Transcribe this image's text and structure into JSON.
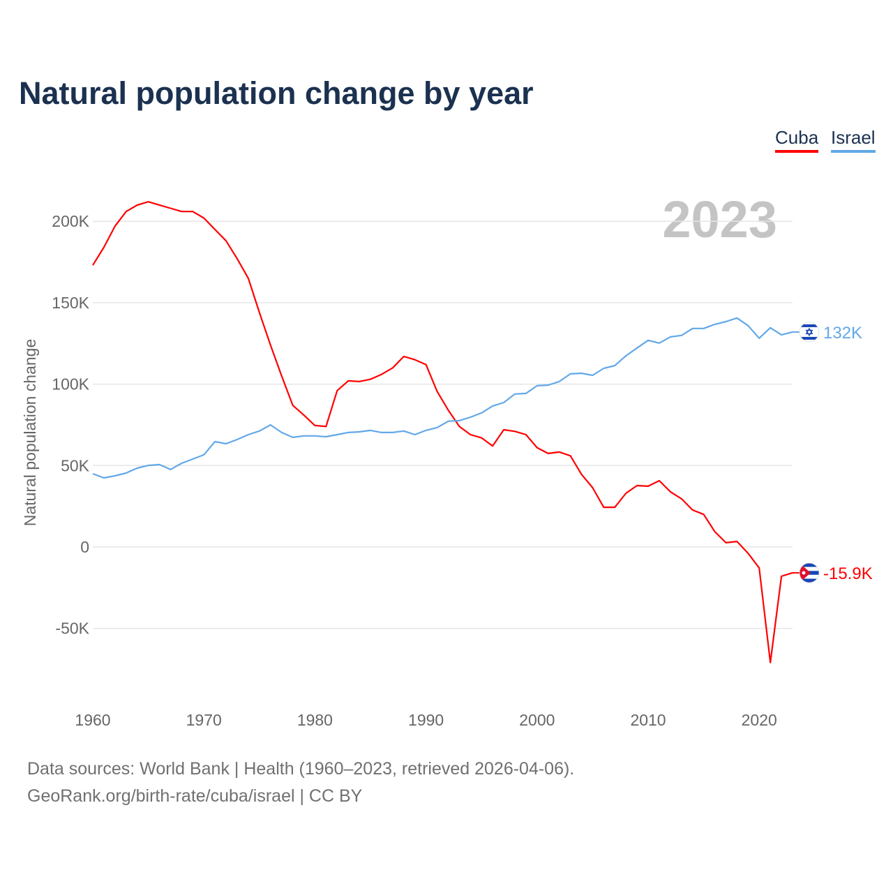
{
  "chart_data": {
    "type": "line",
    "title": "Natural population change by year",
    "ylabel": "Natural population change",
    "xlabel": "",
    "watermark_year": "2023",
    "x": [
      1960,
      1961,
      1962,
      1963,
      1964,
      1965,
      1966,
      1967,
      1968,
      1969,
      1970,
      1971,
      1972,
      1973,
      1974,
      1975,
      1976,
      1977,
      1978,
      1979,
      1980,
      1981,
      1982,
      1983,
      1984,
      1985,
      1986,
      1987,
      1988,
      1989,
      1990,
      1991,
      1992,
      1993,
      1994,
      1995,
      1996,
      1997,
      1998,
      1999,
      2000,
      2001,
      2002,
      2003,
      2004,
      2005,
      2006,
      2007,
      2008,
      2009,
      2010,
      2011,
      2012,
      2013,
      2014,
      2015,
      2016,
      2017,
      2018,
      2019,
      2020,
      2021,
      2022,
      2023
    ],
    "xlim": [
      1960,
      2023
    ],
    "ylim": [
      -90000,
      225000
    ],
    "xticks": [
      1960,
      1970,
      1980,
      1990,
      2000,
      2010,
      2020
    ],
    "xtick_labels": [
      "1960",
      "1970",
      "1980",
      "1990",
      "2000",
      "2010",
      "2020"
    ],
    "yticks": [
      -50000,
      0,
      50000,
      100000,
      150000,
      200000
    ],
    "ytick_labels": [
      "-50K",
      "0",
      "50K",
      "100K",
      "150K",
      "200K"
    ],
    "grid": true,
    "legend_position": "top-right",
    "series": [
      {
        "name": "Cuba",
        "color": "#ff0000",
        "end_label": "-15.9K",
        "flag": "cuba-flag",
        "values": [
          173000,
          184000,
          197000,
          206000,
          210000,
          212000,
          210000,
          208000,
          206000,
          206000,
          202000,
          195000,
          188000,
          177000,
          165000,
          144000,
          124000,
          105000,
          87000,
          81000,
          74600,
          74000,
          96000,
          102000,
          101600,
          103000,
          106000,
          110000,
          117000,
          115000,
          112000,
          95600,
          84000,
          74000,
          69000,
          67000,
          62000,
          72000,
          71000,
          69000,
          61000,
          57400,
          58300,
          56000,
          44600,
          36400,
          24400,
          24400,
          33000,
          37700,
          37300,
          40700,
          33900,
          29600,
          22700,
          20000,
          9400,
          2600,
          3400,
          -3900,
          -12900,
          -71000,
          -18000,
          -15900
        ]
      },
      {
        "name": "Israel",
        "color": "#62a8e8",
        "end_label": "132K",
        "flag": "israel-flag",
        "values": [
          45000,
          42400,
          43700,
          45400,
          48400,
          50100,
          50600,
          47600,
          51400,
          54000,
          56600,
          64700,
          63400,
          66000,
          69000,
          71200,
          75000,
          70300,
          67300,
          68200,
          68200,
          67700,
          69000,
          70300,
          70700,
          71600,
          70300,
          70300,
          71200,
          69000,
          71600,
          73300,
          77200,
          77600,
          79700,
          82300,
          86600,
          88700,
          93900,
          94300,
          99000,
          99400,
          101600,
          106300,
          106700,
          105400,
          109700,
          111400,
          117400,
          122200,
          126900,
          125200,
          129000,
          129900,
          134200,
          134200,
          136700,
          138400,
          140600,
          135900,
          128200,
          134600,
          130300,
          132000
        ]
      }
    ]
  },
  "footer": {
    "line1": "Data sources: World Bank | Health (1960–2023, retrieved 2026-04-06).",
    "line2": "GeoRank.org/birth-rate/cuba/israel | CC BY"
  }
}
